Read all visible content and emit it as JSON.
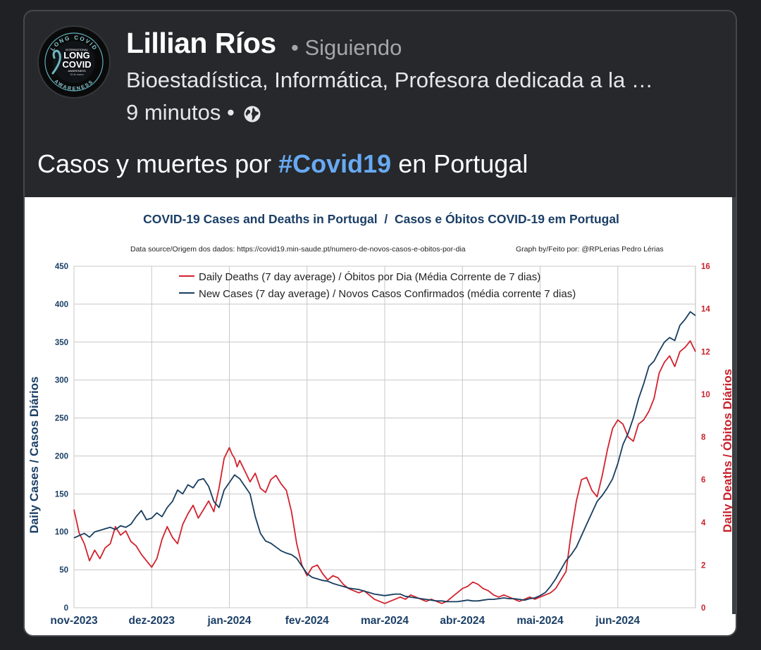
{
  "post": {
    "author": "Lillian Ríos",
    "follow_status": "• Siguiendo",
    "bio": "Bioestadística, Informática, Profesora dedicada a la …",
    "time": "9 minutos •",
    "text_before": "Casos y muertes por ",
    "hashtag": "#Covid19",
    "text_after": " en Portugal"
  },
  "avatar": {
    "arc_top": "LONG COVID",
    "line1": "INTERNATIONAL",
    "line2": "LONG",
    "line3": "COVID",
    "line4": "AWARENESS",
    "line5": "15 de marzo",
    "arc_bottom": "AWARENESS"
  },
  "colors": {
    "cases": "#173d5f",
    "deaths": "#d2222d",
    "hashtag": "#68a9f2"
  },
  "chart_data": {
    "type": "line",
    "title": "COVID-19 Cases and Deaths in Portugal  /  Casos e Óbitos COVID-19 em Portugal",
    "source": "Data source/Origem dos dados: https://covid19.min-saude.pt/numero-de-novos-casos-e-obitos-por-dia",
    "credit": "Graph by/Feito por: @RPLerias Pedro Lérias",
    "ylabel_left": "Daily Cases / Casos Diários",
    "ylabel_right": "Daily Deaths / Óbitos Diários",
    "ylim_left": [
      0,
      450
    ],
    "ylim_right": [
      0,
      16
    ],
    "yticks_left": [
      "0",
      "50",
      "100",
      "150",
      "200",
      "250",
      "300",
      "350",
      "400",
      "450"
    ],
    "yticks_right": [
      "0",
      "2",
      "4",
      "6",
      "8",
      "10",
      "12",
      "14",
      "16"
    ],
    "x_ticks": [
      "nov-2023",
      "dez-2023",
      "jan-2024",
      "fev-2024",
      "mar-2024",
      "abr-2024",
      "mai-2024",
      "jun-2024"
    ],
    "x_range_days": [
      0,
      240
    ],
    "legend_position": "top",
    "grid": true,
    "series": [
      {
        "name": "Daily Deaths (7 day average) / Óbitos por Dia (Média Corrente de 7 dias)",
        "axis": "right",
        "x": [
          0,
          2,
          4,
          6,
          8,
          10,
          12,
          14,
          16,
          18,
          20,
          22,
          24,
          26,
          28,
          30,
          32,
          34,
          36,
          38,
          40,
          42,
          44,
          46,
          48,
          50,
          52,
          54,
          56,
          58,
          60,
          61,
          62,
          63,
          64,
          66,
          68,
          70,
          72,
          74,
          76,
          78,
          80,
          82,
          84,
          86,
          88,
          90,
          92,
          94,
          96,
          98,
          100,
          102,
          104,
          106,
          108,
          110,
          112,
          114,
          116,
          118,
          120,
          122,
          124,
          126,
          128,
          130,
          132,
          134,
          136,
          138,
          140,
          142,
          144,
          146,
          148,
          150,
          152,
          154,
          156,
          158,
          160,
          162,
          164,
          166,
          168,
          170,
          172,
          174,
          176,
          178,
          180,
          182,
          184,
          186,
          188,
          190,
          192,
          194,
          196,
          198,
          200,
          202,
          204,
          206,
          208,
          210,
          212,
          214,
          216,
          218,
          220,
          222,
          224,
          226,
          228,
          230,
          232,
          234,
          236,
          238,
          240
        ],
        "values": [
          4.6,
          3.5,
          3.0,
          2.2,
          2.7,
          2.3,
          2.8,
          3.0,
          3.8,
          3.4,
          3.6,
          3.1,
          2.9,
          2.5,
          2.2,
          1.9,
          2.3,
          3.2,
          3.8,
          3.3,
          3.0,
          3.9,
          4.4,
          4.8,
          4.2,
          4.6,
          5.0,
          4.5,
          5.6,
          7.0,
          7.5,
          7.2,
          7.0,
          6.6,
          6.9,
          6.4,
          5.9,
          6.3,
          5.6,
          5.4,
          6.0,
          6.2,
          5.8,
          5.5,
          4.5,
          3.0,
          2.0,
          1.5,
          1.9,
          2.0,
          1.6,
          1.3,
          1.5,
          1.4,
          1.1,
          0.9,
          0.8,
          0.7,
          0.8,
          0.6,
          0.4,
          0.3,
          0.2,
          0.3,
          0.4,
          0.5,
          0.4,
          0.6,
          0.5,
          0.4,
          0.3,
          0.4,
          0.3,
          0.2,
          0.3,
          0.5,
          0.7,
          0.9,
          1.0,
          1.2,
          1.1,
          0.9,
          0.8,
          0.6,
          0.5,
          0.6,
          0.5,
          0.4,
          0.3,
          0.4,
          0.5,
          0.4,
          0.5,
          0.6,
          0.7,
          0.9,
          1.3,
          1.7,
          3.5,
          5.0,
          6.0,
          6.1,
          5.5,
          5.2,
          6.2,
          7.4,
          8.4,
          8.8,
          8.6,
          8.0,
          7.8,
          8.6,
          8.8,
          9.2,
          9.8,
          11.0,
          11.5,
          11.8,
          11.3,
          12.0,
          12.2,
          12.5,
          12.0
        ]
      },
      {
        "name": "New Cases (7 day average) / Novos Casos Confirmados (média corrente 7 dias)",
        "axis": "left",
        "x": [
          0,
          2,
          4,
          6,
          8,
          10,
          12,
          14,
          16,
          18,
          20,
          22,
          24,
          26,
          28,
          30,
          32,
          34,
          36,
          38,
          40,
          42,
          44,
          46,
          48,
          50,
          52,
          54,
          56,
          58,
          60,
          62,
          64,
          66,
          68,
          70,
          72,
          74,
          76,
          78,
          80,
          82,
          84,
          86,
          88,
          90,
          92,
          94,
          96,
          98,
          100,
          102,
          104,
          106,
          108,
          110,
          112,
          114,
          116,
          118,
          120,
          122,
          124,
          126,
          128,
          130,
          132,
          134,
          136,
          138,
          140,
          142,
          144,
          146,
          148,
          150,
          152,
          154,
          156,
          158,
          160,
          162,
          164,
          166,
          168,
          170,
          172,
          174,
          176,
          178,
          180,
          182,
          184,
          186,
          188,
          190,
          192,
          194,
          196,
          198,
          200,
          202,
          204,
          206,
          208,
          210,
          212,
          214,
          216,
          218,
          220,
          222,
          224,
          226,
          228,
          230,
          232,
          234,
          236,
          238,
          240
        ],
        "values": [
          92,
          95,
          98,
          93,
          100,
          102,
          104,
          106,
          103,
          108,
          106,
          110,
          120,
          128,
          116,
          118,
          125,
          120,
          132,
          140,
          155,
          150,
          162,
          158,
          168,
          170,
          160,
          140,
          132,
          155,
          165,
          175,
          170,
          160,
          150,
          120,
          98,
          88,
          85,
          80,
          75,
          72,
          70,
          65,
          55,
          45,
          40,
          38,
          36,
          35,
          32,
          30,
          28,
          26,
          25,
          24,
          22,
          20,
          18,
          17,
          16,
          17,
          18,
          18,
          15,
          14,
          13,
          12,
          11,
          10,
          9,
          9,
          8,
          8,
          8,
          9,
          10,
          9,
          9,
          10,
          11,
          11,
          12,
          13,
          12,
          12,
          11,
          10,
          12,
          13,
          16,
          20,
          28,
          38,
          50,
          62,
          70,
          80,
          95,
          110,
          125,
          140,
          148,
          158,
          170,
          190,
          215,
          230,
          250,
          275,
          295,
          318,
          325,
          338,
          350,
          356,
          352,
          372,
          380,
          390,
          385
        ]
      }
    ]
  }
}
